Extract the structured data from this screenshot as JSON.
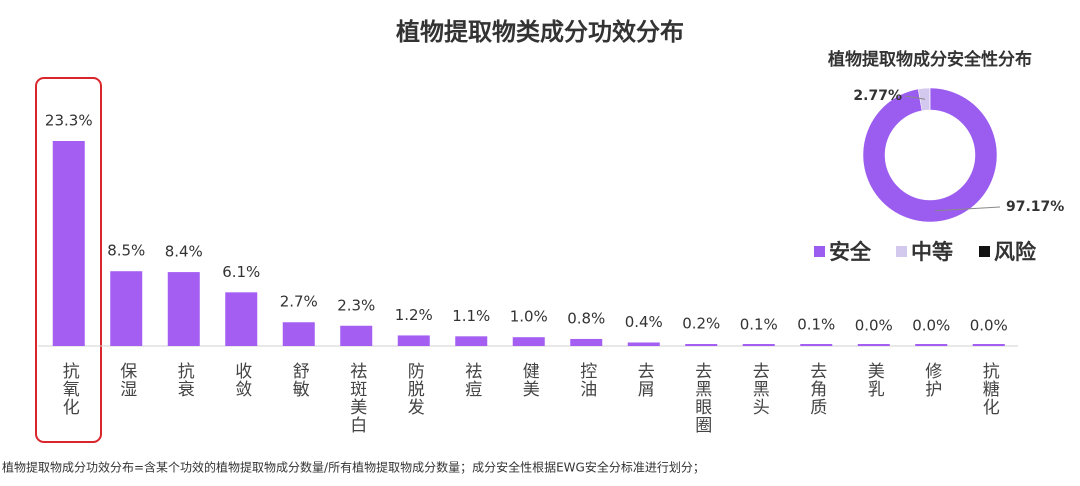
{
  "chart_data": [
    {
      "type": "bar",
      "title": "植物提取物类成分功效分布",
      "categories": [
        "抗氧化",
        "保湿",
        "抗衰",
        "收敛",
        "舒敏",
        "祛斑美白",
        "防脱发",
        "祛痘",
        "健美",
        "控油",
        "去屑",
        "去黑眼圈",
        "去黑头",
        "去角质",
        "美乳",
        "修护",
        "抗糖化"
      ],
      "values": [
        23.3,
        8.5,
        8.4,
        6.1,
        2.7,
        2.3,
        1.2,
        1.1,
        1.0,
        0.8,
        0.4,
        0.2,
        0.1,
        0.1,
        0.0,
        0.0,
        0.0
      ],
      "value_labels": [
        "23.3%",
        "8.5%",
        "8.4%",
        "6.1%",
        "2.7%",
        "2.3%",
        "1.2%",
        "1.1%",
        "1.0%",
        "0.8%",
        "0.4%",
        "0.2%",
        "0.1%",
        "0.1%",
        "0.0%",
        "0.0%",
        "0.0%"
      ],
      "color": "#a45ef2"
    },
    {
      "type": "donut",
      "title": "植物提取物成分安全性分布",
      "categories": [
        "安全",
        "中等",
        "风险"
      ],
      "values": [
        97.17,
        2.77,
        0.06
      ],
      "value_labels": [
        "97.17%",
        "2.77%",
        null
      ],
      "colors": [
        "#9b5cf0",
        "#d3c8ee",
        "#111111"
      ],
      "legend": "bottom"
    }
  ],
  "footnote": "植物提取物成分功效分布=含某个功效的植物提取物成分数量/所有植物提取物成分数量；成分安全性根据EWG安全分标准进行划分；"
}
